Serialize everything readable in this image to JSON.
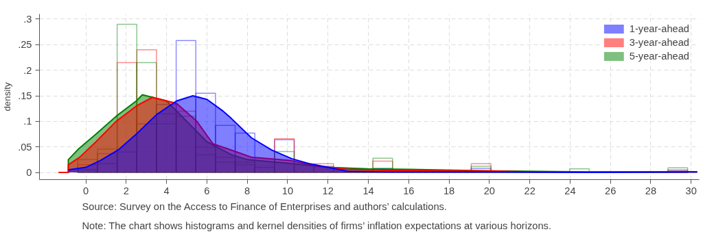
{
  "chart_data": {
    "type": "histogram",
    "ylabel": "density",
    "bins": [
      -0.4,
      0.575,
      1.55,
      2.525,
      3.5,
      4.475,
      5.45,
      6.425,
      7.4,
      8.375,
      9.35,
      10.325,
      11.3,
      12.275,
      13.25,
      14.225,
      15.2,
      16.175,
      17.15,
      18.125,
      19.1,
      20.075,
      21.05,
      22.025,
      23.0,
      23.975,
      24.95,
      25.925,
      26.9,
      27.875,
      28.85,
      29.825
    ],
    "series": [
      {
        "color": "#0000ff",
        "values": [
          0.005,
          0.017,
          0.04,
          0.095,
          0.133,
          0.258,
          0.155,
          0.092,
          0.077,
          0.01,
          0.064,
          0,
          0.012,
          0,
          0,
          0.008,
          0,
          0,
          0,
          0,
          0.008,
          0,
          0,
          0,
          0,
          0,
          0,
          0,
          0,
          0,
          0.003
        ]
      },
      {
        "color": "#ff0000",
        "values": [
          0.015,
          0.037,
          0.215,
          0.24,
          0.115,
          0.12,
          0.05,
          0.03,
          0.02,
          0,
          0.066,
          0,
          0.017,
          0,
          0,
          0.022,
          0,
          0,
          0,
          0,
          0.017,
          0,
          0,
          0,
          0,
          0,
          0,
          0,
          0,
          0,
          0.005
        ]
      },
      {
        "color": "#008000",
        "values": [
          0.025,
          0.046,
          0.29,
          0.215,
          0.095,
          0.11,
          0.035,
          0.02,
          0.015,
          0,
          0.041,
          0,
          0,
          0,
          0,
          0.028,
          0,
          0,
          0,
          0,
          0.012,
          0,
          0,
          0,
          0,
          0.007,
          0,
          0,
          0,
          0,
          0.009
        ]
      },
      {
        "type": "area",
        "name": "1-year-ahead",
        "color": "#0000ff",
        "x": [
          -0.87,
          0,
          0.7,
          1.6,
          2.5,
          3.5,
          4.5,
          5.3,
          6,
          6.8,
          7.2,
          8.2,
          9.2,
          10.2,
          11.1,
          13,
          15,
          20,
          25,
          30.3
        ],
        "values": [
          0.005,
          0.01,
          0.023,
          0.044,
          0.075,
          0.113,
          0.14,
          0.15,
          0.143,
          0.12,
          0.106,
          0.068,
          0.044,
          0.027,
          0.017,
          0.002,
          0.001,
          0.001,
          0,
          0.001
        ]
      },
      {
        "type": "area",
        "name": "3-year-ahead",
        "color": "#ff0000",
        "x": [
          -1.36,
          -0.87,
          -0.87,
          -0.3,
          0.5,
          1.5,
          2.5,
          3.3,
          4.5,
          5.5,
          6.3,
          7.2,
          8.2,
          10.2,
          11.5,
          13,
          15,
          20,
          22,
          30.3
        ],
        "values": [
          0,
          0,
          0.015,
          0.03,
          0.06,
          0.1,
          0.13,
          0.147,
          0.135,
          0.1,
          0.056,
          0.044,
          0.03,
          0.023,
          0.012,
          0.006,
          0.004,
          0.003,
          0.001,
          0.001
        ]
      },
      {
        "type": "area",
        "name": "5-year-ahead",
        "color": "#008000",
        "x": [
          -0.87,
          -0.87,
          -0.34,
          0.5,
          1.5,
          2.5,
          2.8,
          4,
          5,
          6,
          7.2,
          8,
          10,
          12,
          14,
          16,
          20,
          25,
          30.3
        ],
        "values": [
          0,
          0.025,
          0.047,
          0.075,
          0.11,
          0.14,
          0.152,
          0.14,
          0.1,
          0.06,
          0.035,
          0.025,
          0.018,
          0.01,
          0.007,
          0.006,
          0.003,
          0.001,
          0.001
        ]
      }
    ],
    "xlim": [
      -2.3,
      30.4
    ],
    "xticks": [
      0,
      2,
      4,
      6,
      8,
      10,
      12,
      14,
      16,
      18,
      20,
      22,
      24,
      26,
      28,
      30
    ],
    "ylim": [
      -0.014,
      0.31
    ],
    "yticks": [
      {
        "value": 0,
        "label": "0"
      },
      {
        "value": 0.05,
        "label": ".05"
      },
      {
        "value": 0.1,
        "label": ".1"
      },
      {
        "value": 0.15,
        "label": ".15"
      },
      {
        "value": 0.2,
        "label": ".2"
      },
      {
        "value": 0.25,
        "label": ".25"
      },
      {
        "value": 0.3,
        "label": ".3"
      }
    ],
    "grid": true,
    "legend": "top right",
    "annotations": [
      "Source: Survey on the Access to Finance of Enterprises and authors’ calculations.",
      "Note: The chart shows histograms and kernel densities of firms’ inflation expectations at various horizons."
    ]
  }
}
